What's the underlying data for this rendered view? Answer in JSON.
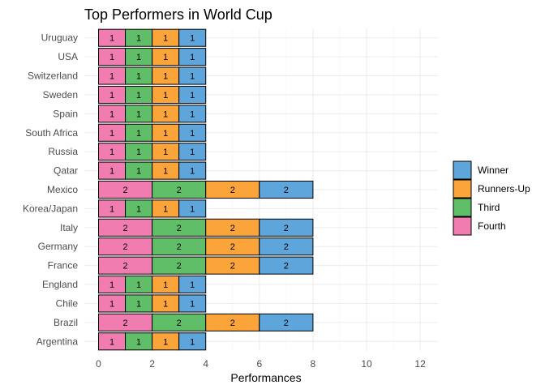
{
  "chart_data": {
    "type": "bar",
    "orientation": "horizontal",
    "stacked": true,
    "title": "Top Performers in World Cup",
    "xlabel": "Performances",
    "ylabel": "",
    "xlim": [
      0,
      12.6
    ],
    "x_ticks": [
      0,
      2,
      4,
      6,
      8,
      10,
      12
    ],
    "grid": true,
    "legend_position": "right",
    "categories": [
      "Argentina",
      "Brazil",
      "Chile",
      "England",
      "France",
      "Germany",
      "Italy",
      "Korea/Japan",
      "Mexico",
      "Qatar",
      "Russia",
      "South Africa",
      "Spain",
      "Sweden",
      "Switzerland",
      "USA",
      "Uruguay"
    ],
    "series": [
      {
        "name": "Fourth",
        "color": "#F17CB0",
        "values": [
          1,
          2,
          1,
          1,
          2,
          2,
          2,
          1,
          2,
          1,
          1,
          1,
          1,
          1,
          1,
          1,
          1
        ]
      },
      {
        "name": "Third",
        "color": "#60BD68",
        "values": [
          1,
          2,
          1,
          1,
          2,
          2,
          2,
          1,
          2,
          1,
          1,
          1,
          1,
          1,
          1,
          1,
          1
        ]
      },
      {
        "name": "Runners-Up",
        "color": "#FAA43A",
        "values": [
          1,
          2,
          1,
          1,
          2,
          2,
          2,
          1,
          2,
          1,
          1,
          1,
          1,
          1,
          1,
          1,
          1
        ]
      },
      {
        "name": "Winner",
        "color": "#5DA5DA",
        "values": [
          1,
          2,
          1,
          1,
          2,
          2,
          2,
          1,
          2,
          1,
          1,
          1,
          1,
          1,
          1,
          1,
          1
        ]
      }
    ],
    "legend_order": [
      "Winner",
      "Runners-Up",
      "Third",
      "Fourth"
    ]
  }
}
